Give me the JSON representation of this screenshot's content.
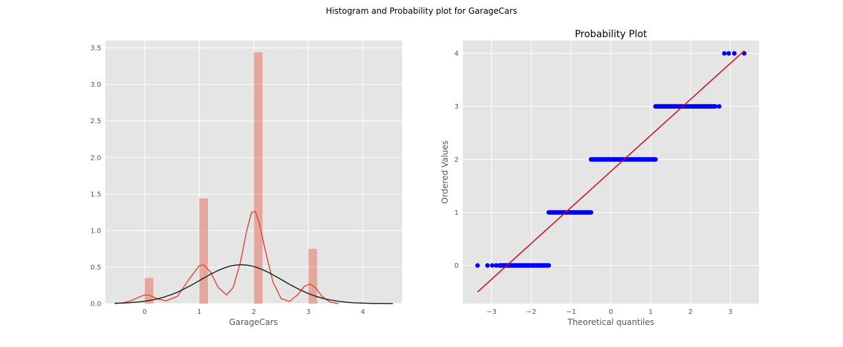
{
  "figure": {
    "suptitle": "Histogram and Probability plot for GarageCars"
  },
  "chart_data": [
    {
      "type": "bar",
      "title": "",
      "xlabel": "GarageCars",
      "ylabel": "",
      "xlim": [
        -0.72,
        4.72
      ],
      "ylim": [
        0,
        3.6
      ],
      "grid": true,
      "x_ticks": [
        {
          "value": 0,
          "label": "0"
        },
        {
          "value": 1,
          "label": "1"
        },
        {
          "value": 2,
          "label": "2"
        },
        {
          "value": 3,
          "label": "3"
        },
        {
          "value": 4,
          "label": "4"
        }
      ],
      "y_ticks": [
        {
          "value": 0,
          "label": "0.0"
        },
        {
          "value": 0.5,
          "label": "0.5"
        },
        {
          "value": 1.0,
          "label": "1.0"
        },
        {
          "value": 1.5,
          "label": "1.5"
        },
        {
          "value": 2.0,
          "label": "2.0"
        },
        {
          "value": 2.5,
          "label": "2.5"
        },
        {
          "value": 3.0,
          "label": "3.0"
        },
        {
          "value": 3.5,
          "label": "3.5"
        }
      ],
      "bars": [
        {
          "x0": 0.0,
          "x1": 0.16,
          "height": 0.35
        },
        {
          "x0": 1.0,
          "x1": 1.16,
          "height": 1.44
        },
        {
          "x0": 2.0,
          "x1": 2.16,
          "height": 3.44
        },
        {
          "x0": 3.0,
          "x1": 3.16,
          "height": 0.75
        }
      ],
      "kde_curve": {
        "color": "#e24a33",
        "points": [
          [
            -0.55,
            0.0
          ],
          [
            -0.4,
            0.01
          ],
          [
            -0.25,
            0.04
          ],
          [
            -0.1,
            0.09
          ],
          [
            0.0,
            0.12
          ],
          [
            0.1,
            0.11
          ],
          [
            0.25,
            0.06
          ],
          [
            0.4,
            0.04
          ],
          [
            0.6,
            0.1
          ],
          [
            0.8,
            0.32
          ],
          [
            1.0,
            0.52
          ],
          [
            1.08,
            0.53
          ],
          [
            1.2,
            0.44
          ],
          [
            1.35,
            0.22
          ],
          [
            1.5,
            0.12
          ],
          [
            1.62,
            0.22
          ],
          [
            1.75,
            0.55
          ],
          [
            1.87,
            1.0
          ],
          [
            1.96,
            1.25
          ],
          [
            2.03,
            1.26
          ],
          [
            2.1,
            1.1
          ],
          [
            2.22,
            0.7
          ],
          [
            2.35,
            0.3
          ],
          [
            2.5,
            0.07
          ],
          [
            2.65,
            0.03
          ],
          [
            2.8,
            0.12
          ],
          [
            2.93,
            0.24
          ],
          [
            3.03,
            0.27
          ],
          [
            3.13,
            0.22
          ],
          [
            3.25,
            0.1
          ],
          [
            3.4,
            0.02
          ],
          [
            3.55,
            0.0
          ]
        ]
      },
      "normal_fit_curve": {
        "color": "#222222",
        "mean": 1.77,
        "std": 0.75
      },
      "bar_color": "#e24a33"
    },
    {
      "type": "scatter",
      "title": "Probability Plot",
      "xlabel": "Theoretical quantiles",
      "ylabel": "Ordered Values",
      "xlim": [
        -3.72,
        3.72
      ],
      "ylim": [
        -0.72,
        4.24
      ],
      "grid": true,
      "x_ticks": [
        {
          "value": -3,
          "label": "−3"
        },
        {
          "value": -2,
          "label": "−2"
        },
        {
          "value": -1,
          "label": "−1"
        },
        {
          "value": 0,
          "label": "0"
        },
        {
          "value": 1,
          "label": "1"
        },
        {
          "value": 2,
          "label": "2"
        },
        {
          "value": 3,
          "label": "3"
        }
      ],
      "y_ticks": [
        {
          "value": 0,
          "label": "0"
        },
        {
          "value": 1,
          "label": "1"
        },
        {
          "value": 2,
          "label": "2"
        },
        {
          "value": 3,
          "label": "3"
        },
        {
          "value": 4,
          "label": "4"
        }
      ],
      "point_color": "#0000ff",
      "point_runs": [
        {
          "y": 0,
          "isolated_x": [
            -3.35,
            -3.1,
            -2.98,
            -2.88
          ],
          "x_start": -2.8,
          "x_end": -1.56
        },
        {
          "y": 1,
          "isolated_x": [],
          "x_start": -1.56,
          "x_end": -0.5
        },
        {
          "y": 2,
          "isolated_x": [],
          "x_start": -0.5,
          "x_end": 1.12
        },
        {
          "y": 3,
          "isolated_x": [
            2.72
          ],
          "x_start": 1.12,
          "x_end": 2.62
        },
        {
          "y": 4,
          "isolated_x": [
            2.85,
            2.96,
            3.1,
            3.35
          ],
          "x_start": null,
          "x_end": null
        }
      ],
      "fit_line": {
        "color": "#e00000",
        "x": [
          -3.35,
          3.35
        ],
        "y": [
          -0.5,
          4.05
        ]
      }
    }
  ]
}
